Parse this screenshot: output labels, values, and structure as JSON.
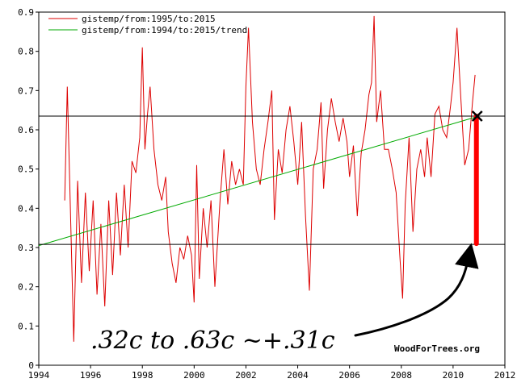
{
  "chart_data": {
    "type": "line",
    "xlim": [
      1994,
      2012
    ],
    "ylim": [
      0,
      0.9
    ],
    "x_ticks": [
      "1994",
      "1996",
      "1998",
      "2000",
      "2002",
      "2004",
      "2006",
      "2008",
      "2010",
      "2012"
    ],
    "y_ticks": [
      "0",
      "0.1",
      "0.2",
      "0.3",
      "0.4",
      "0.5",
      "0.6",
      "0.7",
      "0.8",
      "0.9"
    ],
    "grid": false,
    "legend_position": "top-left",
    "series": [
      {
        "name": "gistemp/from:1995/to:2015",
        "color": "#dd0000",
        "points": [
          [
            1995.0,
            0.42
          ],
          [
            1995.1,
            0.71
          ],
          [
            1995.25,
            0.32
          ],
          [
            1995.35,
            0.06
          ],
          [
            1995.5,
            0.47
          ],
          [
            1995.65,
            0.21
          ],
          [
            1995.8,
            0.44
          ],
          [
            1995.95,
            0.24
          ],
          [
            1996.1,
            0.42
          ],
          [
            1996.25,
            0.18
          ],
          [
            1996.4,
            0.36
          ],
          [
            1996.55,
            0.15
          ],
          [
            1996.7,
            0.42
          ],
          [
            1996.85,
            0.23
          ],
          [
            1997.0,
            0.44
          ],
          [
            1997.15,
            0.28
          ],
          [
            1997.3,
            0.46
          ],
          [
            1997.45,
            0.3
          ],
          [
            1997.6,
            0.52
          ],
          [
            1997.75,
            0.49
          ],
          [
            1997.9,
            0.58
          ],
          [
            1998.0,
            0.81
          ],
          [
            1998.1,
            0.55
          ],
          [
            1998.2,
            0.64
          ],
          [
            1998.3,
            0.71
          ],
          [
            1998.45,
            0.55
          ],
          [
            1998.6,
            0.46
          ],
          [
            1998.75,
            0.42
          ],
          [
            1998.9,
            0.48
          ],
          [
            1999.0,
            0.34
          ],
          [
            1999.15,
            0.26
          ],
          [
            1999.3,
            0.21
          ],
          [
            1999.45,
            0.3
          ],
          [
            1999.6,
            0.27
          ],
          [
            1999.75,
            0.33
          ],
          [
            1999.9,
            0.28
          ],
          [
            2000.0,
            0.16
          ],
          [
            2000.1,
            0.51
          ],
          [
            2000.2,
            0.22
          ],
          [
            2000.35,
            0.4
          ],
          [
            2000.5,
            0.3
          ],
          [
            2000.65,
            0.42
          ],
          [
            2000.8,
            0.2
          ],
          [
            2000.9,
            0.31
          ],
          [
            2001.0,
            0.42
          ],
          [
            2001.15,
            0.55
          ],
          [
            2001.3,
            0.41
          ],
          [
            2001.45,
            0.52
          ],
          [
            2001.6,
            0.46
          ],
          [
            2001.75,
            0.5
          ],
          [
            2001.9,
            0.46
          ],
          [
            2002.0,
            0.71
          ],
          [
            2002.1,
            0.86
          ],
          [
            2002.25,
            0.62
          ],
          [
            2002.4,
            0.5
          ],
          [
            2002.55,
            0.46
          ],
          [
            2002.7,
            0.55
          ],
          [
            2002.85,
            0.62
          ],
          [
            2003.0,
            0.7
          ],
          [
            2003.1,
            0.37
          ],
          [
            2003.25,
            0.55
          ],
          [
            2003.4,
            0.49
          ],
          [
            2003.55,
            0.6
          ],
          [
            2003.7,
            0.66
          ],
          [
            2003.85,
            0.57
          ],
          [
            2004.0,
            0.46
          ],
          [
            2004.15,
            0.62
          ],
          [
            2004.3,
            0.38
          ],
          [
            2004.45,
            0.19
          ],
          [
            2004.6,
            0.5
          ],
          [
            2004.75,
            0.55
          ],
          [
            2004.9,
            0.67
          ],
          [
            2005.0,
            0.45
          ],
          [
            2005.15,
            0.6
          ],
          [
            2005.3,
            0.68
          ],
          [
            2005.45,
            0.62
          ],
          [
            2005.6,
            0.57
          ],
          [
            2005.75,
            0.63
          ],
          [
            2005.9,
            0.57
          ],
          [
            2006.0,
            0.48
          ],
          [
            2006.15,
            0.56
          ],
          [
            2006.3,
            0.38
          ],
          [
            2006.45,
            0.54
          ],
          [
            2006.6,
            0.6
          ],
          [
            2006.75,
            0.69
          ],
          [
            2006.85,
            0.72
          ],
          [
            2006.95,
            0.89
          ],
          [
            2007.05,
            0.62
          ],
          [
            2007.2,
            0.7
          ],
          [
            2007.35,
            0.55
          ],
          [
            2007.5,
            0.55
          ],
          [
            2007.65,
            0.5
          ],
          [
            2007.8,
            0.44
          ],
          [
            2007.95,
            0.27
          ],
          [
            2008.05,
            0.17
          ],
          [
            2008.15,
            0.41
          ],
          [
            2008.3,
            0.58
          ],
          [
            2008.45,
            0.34
          ],
          [
            2008.6,
            0.5
          ],
          [
            2008.75,
            0.55
          ],
          [
            2008.9,
            0.48
          ],
          [
            2009.0,
            0.58
          ],
          [
            2009.15,
            0.48
          ],
          [
            2009.3,
            0.64
          ],
          [
            2009.45,
            0.66
          ],
          [
            2009.6,
            0.6
          ],
          [
            2009.75,
            0.58
          ],
          [
            2009.9,
            0.66
          ],
          [
            2010.0,
            0.72
          ],
          [
            2010.15,
            0.86
          ],
          [
            2010.3,
            0.68
          ],
          [
            2010.45,
            0.51
          ],
          [
            2010.6,
            0.55
          ],
          [
            2010.75,
            0.67
          ],
          [
            2010.85,
            0.74
          ]
        ]
      },
      {
        "name": "gistemp/from:1994/to:2015/trend",
        "color": "#00aa00",
        "points": [
          [
            1994.0,
            0.305
          ],
          [
            2011.0,
            0.635
          ]
        ]
      }
    ],
    "annotations": {
      "hlines": [
        0.635,
        0.308
      ],
      "vbar": {
        "x": 2010.9,
        "from": 0.31,
        "to": 0.635,
        "color": "#ff0000"
      },
      "handwritten_text": ".32c to .63c ~+.31c"
    },
    "credit": "WoodForTrees.org"
  }
}
